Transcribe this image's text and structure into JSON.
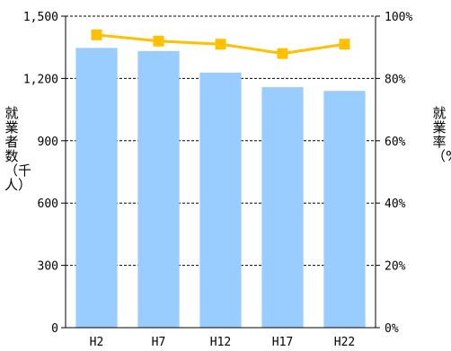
{
  "chart_data": {
    "type": "bar",
    "categories": [
      "H2",
      "H7",
      "H12",
      "H17",
      "H22"
    ],
    "series": [
      {
        "name": "就業者数",
        "type": "bar",
        "axis": "left",
        "values": [
          1347,
          1332,
          1228,
          1158,
          1140
        ],
        "color": "#99ccff"
      },
      {
        "name": "就業率",
        "type": "line",
        "axis": "right",
        "values": [
          94,
          92,
          91,
          88,
          91
        ],
        "color": "#ffc000"
      }
    ],
    "ylabel_left": "就業者数（千人）",
    "ylabel_right": "就業率（%）",
    "ylim_left": [
      0,
      1500
    ],
    "ylim_right": [
      0,
      100
    ],
    "yticks_left": [
      "0",
      "300",
      "600",
      "900",
      "1,200",
      "1,500"
    ],
    "yticks_right": [
      "0%",
      "20%",
      "40%",
      "60%",
      "80%",
      "100%"
    ],
    "grid": "dashed horizontal"
  }
}
